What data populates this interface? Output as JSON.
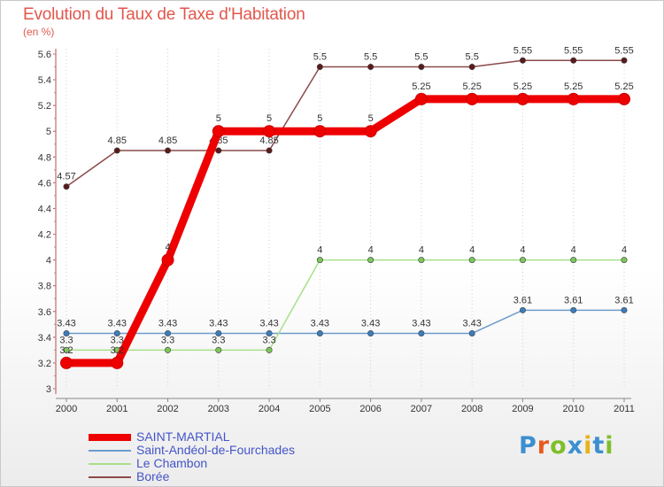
{
  "chart_data": {
    "type": "line",
    "title": "Evolution du Taux de Taxe d'Habitation",
    "subtitle": "(en %)",
    "categories": [
      "2000",
      "2001",
      "2002",
      "2003",
      "2004",
      "2005",
      "2006",
      "2007",
      "2008",
      "2009",
      "2010",
      "2011"
    ],
    "ylim": [
      3,
      5.6
    ],
    "yticks": [
      "3",
      "3.2",
      "3.4",
      "3.6",
      "3.8",
      "4",
      "4.2",
      "4.4",
      "4.6",
      "4.8",
      "5",
      "5.2",
      "5.4",
      "5.6"
    ],
    "grid": "vertical-dotted",
    "series": [
      {
        "name": "Borée",
        "color": "#8a4a4a",
        "marker": "#5a1a1a",
        "values": [
          4.57,
          4.85,
          4.85,
          4.85,
          4.85,
          5.5,
          5.5,
          5.5,
          5.5,
          5.55,
          5.55,
          5.55
        ],
        "labels": [
          "4.57",
          "4.85",
          "4.85",
          "4.85",
          "4.85",
          "5.5",
          "5.5",
          "5.5",
          "5.5",
          "5.55",
          "5.55",
          "5.55"
        ]
      },
      {
        "name": "Saint-Andéol-de-Fourchades",
        "color": "#6c9ccc",
        "marker": "#3c7cbc",
        "values": [
          3.43,
          3.43,
          3.43,
          3.43,
          3.43,
          3.43,
          3.43,
          3.43,
          3.43,
          3.61,
          3.61,
          3.61
        ],
        "labels": [
          "3.43",
          "3.43",
          "3.43",
          "3.43",
          "3.43",
          "3.43",
          "3.43",
          "3.43",
          "3.43",
          "3.61",
          "3.61",
          "3.61"
        ]
      },
      {
        "name": "Le Chambon",
        "color": "#a6e08a",
        "marker": "#7cc65a",
        "values": [
          3.3,
          3.3,
          3.3,
          3.3,
          3.3,
          4,
          4,
          4,
          4,
          4,
          4,
          4
        ],
        "labels": [
          "3.3",
          "3.3",
          "3.3",
          "3.3",
          "3.3",
          "4",
          "4",
          "4",
          "4",
          "4",
          "4",
          "4"
        ]
      },
      {
        "name": "SAINT-MARTIAL",
        "color": "#ee0000",
        "marker": "#ee0000",
        "values": [
          3.2,
          3.2,
          4,
          5,
          5,
          5,
          5,
          5.25,
          5.25,
          5.25,
          5.25,
          5.25
        ],
        "labels": [
          "3.2",
          "3.2",
          "4",
          "5",
          "5",
          "5",
          "5",
          "5.25",
          "5.25",
          "5.25",
          "5.25",
          "5.25"
        ]
      }
    ]
  },
  "legend": [
    {
      "name": "SAINT-MARTIAL",
      "color": "#ee0000"
    },
    {
      "name": "Saint-Andéol-de-Fourchades",
      "color": "#6c9ccc"
    },
    {
      "name": "Le Chambon",
      "color": "#a6e08a"
    },
    {
      "name": "Borée",
      "color": "#8a4a4a"
    }
  ],
  "brand": {
    "text": "Proxiti",
    "colors": [
      "#3c8fd0",
      "#e85a1c",
      "#7fbf2a",
      "#3c8fd0",
      "#e8b21c",
      "#3c8fd0",
      "#7fbf2a"
    ]
  }
}
